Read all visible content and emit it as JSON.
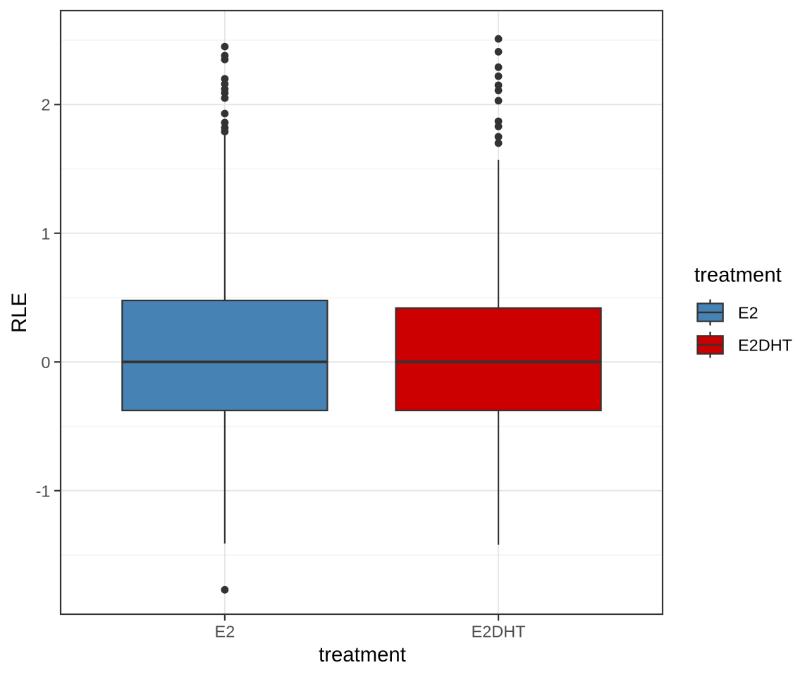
{
  "chart_data": {
    "type": "boxplot",
    "title": "",
    "xlabel": "treatment",
    "ylabel": "RLE",
    "categories": [
      "E2",
      "E2DHT"
    ],
    "ylim": [
      -1.96,
      2.73
    ],
    "y_major_ticks": [
      -1,
      0,
      1,
      2
    ],
    "y_major_tick_labels": [
      "-1",
      "0",
      "1",
      "2"
    ],
    "y_minor_ticks": [
      -1.5,
      -0.5,
      0.5,
      1.5,
      2.5
    ],
    "grid": {
      "horizontal_major": true,
      "horizontal_minor": true,
      "vertical_major": true,
      "vertical_minor": false
    },
    "legend": {
      "title": "treatment",
      "position": "right",
      "items": [
        {
          "label": "E2",
          "color": "#4682B4"
        },
        {
          "label": "E2DHT",
          "color": "#CC0000"
        }
      ]
    },
    "series": [
      {
        "name": "E2",
        "fill": "#4682B4",
        "box": {
          "q1": -0.377,
          "median": 0.0,
          "q3": 0.478,
          "whisker_low": -1.41,
          "whisker_high": 1.76
        },
        "outliers": [
          2.45,
          2.38,
          2.35,
          2.2,
          2.16,
          2.12,
          2.09,
          2.05,
          1.93,
          1.86,
          1.82,
          1.79,
          -1.77
        ]
      },
      {
        "name": "E2DHT",
        "fill": "#CC0000",
        "box": {
          "q1": -0.377,
          "median": 0.0,
          "q3": 0.419,
          "whisker_low": -1.42,
          "whisker_high": 1.57
        },
        "outliers": [
          2.51,
          2.41,
          2.29,
          2.22,
          2.15,
          2.11,
          2.03,
          1.87,
          1.83,
          1.75,
          1.7
        ]
      }
    ],
    "colors": {
      "box_line": "#333333",
      "outlier_point": "#333333",
      "axis_tick_text": "#4D4D4D",
      "axis_title_text": "#000000",
      "legend_text": "#000000",
      "grid_major": "#E6E6E6",
      "grid_minor": "#F2F2F2",
      "panel_border": "#333333",
      "background": "#FFFFFF"
    }
  }
}
